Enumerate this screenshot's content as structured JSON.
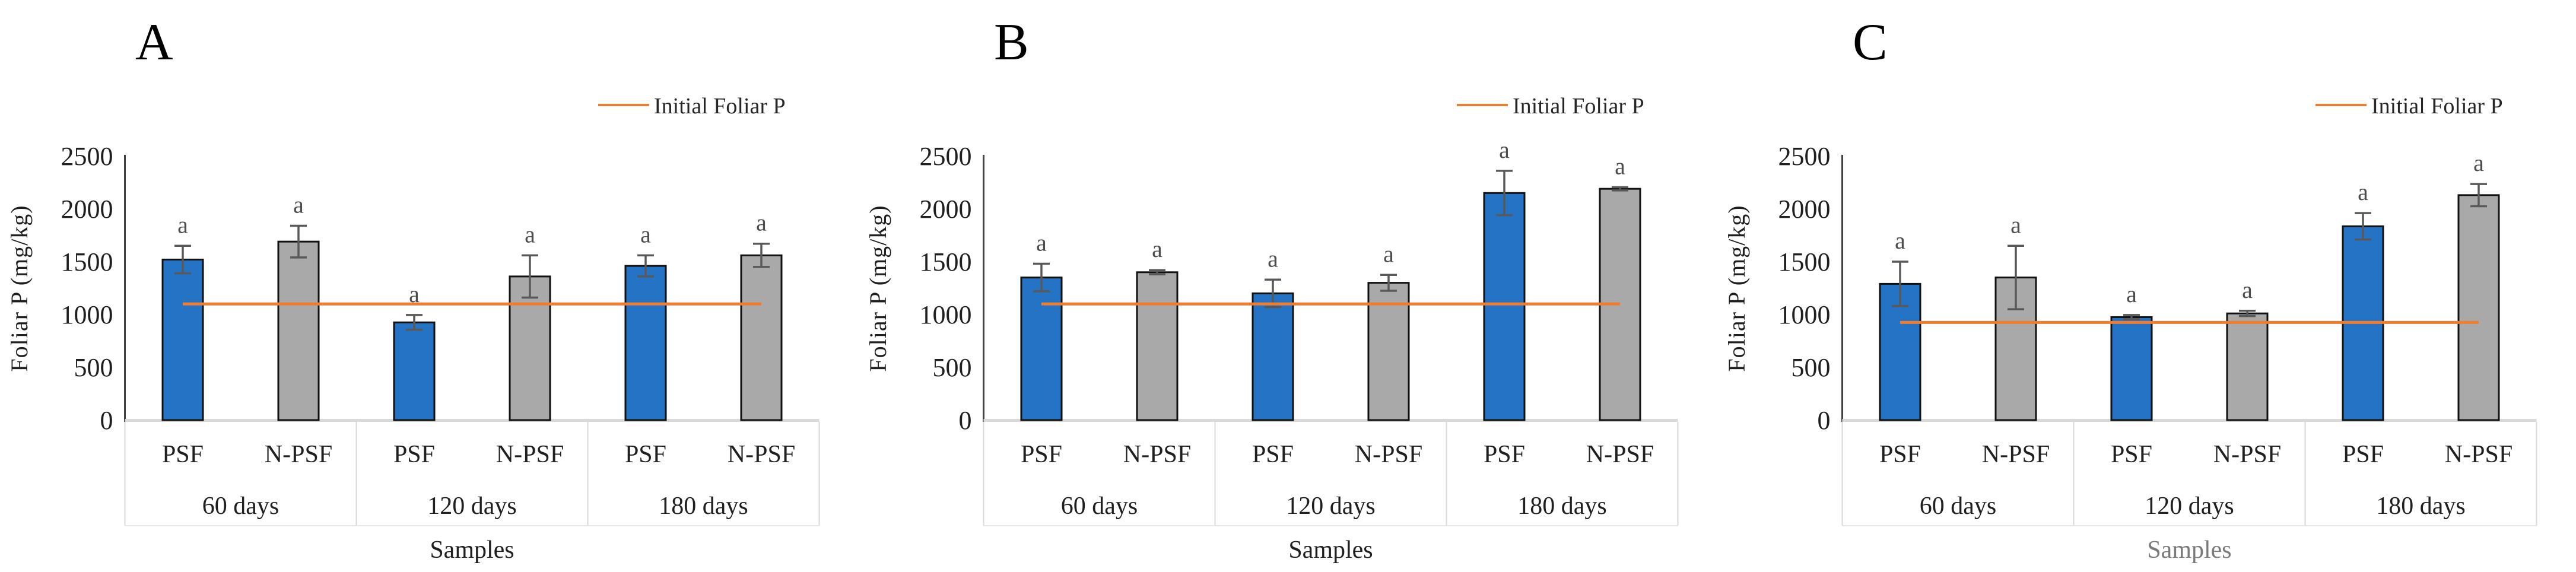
{
  "figure_title": "Foliar P bar charts, panels A, B and C",
  "chart_data": [
    {
      "type": "bar",
      "panel_label": "A",
      "xlabel": "Samples",
      "xlabel_color": "#1f1f1f",
      "ylabel": "Foliar P  (mg/kg)",
      "ylim": [
        0,
        2500
      ],
      "yticks": [
        0,
        500,
        1000,
        1500,
        2000,
        2500
      ],
      "grid": false,
      "legend_position": "top-right",
      "groups": [
        "60 days",
        "120 days",
        "180 days"
      ],
      "categories": [
        "PSF",
        "N-PSF"
      ],
      "series": [
        {
          "name": "PSF",
          "color": "#2473C5",
          "values": [
            1520,
            925,
            1460
          ],
          "errors": [
            130,
            70,
            100
          ]
        },
        {
          "name": "N-PSF",
          "color": "#A9A9A9",
          "values": [
            1690,
            1360,
            1560
          ],
          "errors": [
            150,
            200,
            110
          ]
        }
      ],
      "letters": [
        [
          "a",
          "a"
        ],
        [
          "a",
          "a"
        ],
        [
          "a",
          "a"
        ]
      ],
      "ref_line": {
        "label": "Initial Foliar P",
        "value": 1100,
        "color": "#ED7D31"
      }
    },
    {
      "type": "bar",
      "panel_label": "B",
      "xlabel": "Samples",
      "xlabel_color": "#1f1f1f",
      "ylabel": "Foliar P  (mg/kg)",
      "ylim": [
        0,
        2500
      ],
      "yticks": [
        0,
        500,
        1000,
        1500,
        2000,
        2500
      ],
      "grid": false,
      "legend_position": "top-right",
      "groups": [
        "60 days",
        "120 days",
        "180 days"
      ],
      "categories": [
        "PSF",
        "N-PSF"
      ],
      "series": [
        {
          "name": "PSF",
          "color": "#2473C5",
          "values": [
            1350,
            1200,
            2150
          ],
          "errors": [
            130,
            130,
            210
          ]
        },
        {
          "name": "N-PSF",
          "color": "#A9A9A9",
          "values": [
            1400,
            1300,
            2190
          ],
          "errors": [
            20,
            75,
            15
          ]
        }
      ],
      "letters": [
        [
          "a",
          "a"
        ],
        [
          "a",
          "a"
        ],
        [
          "a",
          "a"
        ]
      ],
      "ref_line": {
        "label": "Initial Foliar P",
        "value": 1100,
        "color": "#ED7D31"
      }
    },
    {
      "type": "bar",
      "panel_label": "C",
      "xlabel": "Samples",
      "xlabel_color": "#7a7a7a",
      "ylabel": "Foliar P  (mg/kg)",
      "ylim": [
        0,
        2500
      ],
      "yticks": [
        0,
        500,
        1000,
        1500,
        2000,
        2500
      ],
      "grid": false,
      "legend_position": "top-right",
      "groups": [
        "60 days",
        "120 days",
        "180 days"
      ],
      "categories": [
        "PSF",
        "N-PSF"
      ],
      "series": [
        {
          "name": "PSF",
          "color": "#2473C5",
          "values": [
            1290,
            975,
            1835
          ],
          "errors": [
            210,
            20,
            125
          ]
        },
        {
          "name": "N-PSF",
          "color": "#A9A9A9",
          "values": [
            1350,
            1010,
            2130
          ],
          "errors": [
            300,
            25,
            105
          ]
        }
      ],
      "letters": [
        [
          "a",
          "a"
        ],
        [
          "a",
          "a"
        ],
        [
          "a",
          "a"
        ]
      ],
      "ref_line": {
        "label": "Initial Foliar P",
        "value": 925,
        "color": "#ED7D31"
      }
    }
  ],
  "style_colors": {
    "bar_outline": "#111111",
    "error_bar": "#595959",
    "axis_line": "#404040",
    "table_border": "#D9D9D9",
    "baseline_strip": "#D9D9D9"
  }
}
